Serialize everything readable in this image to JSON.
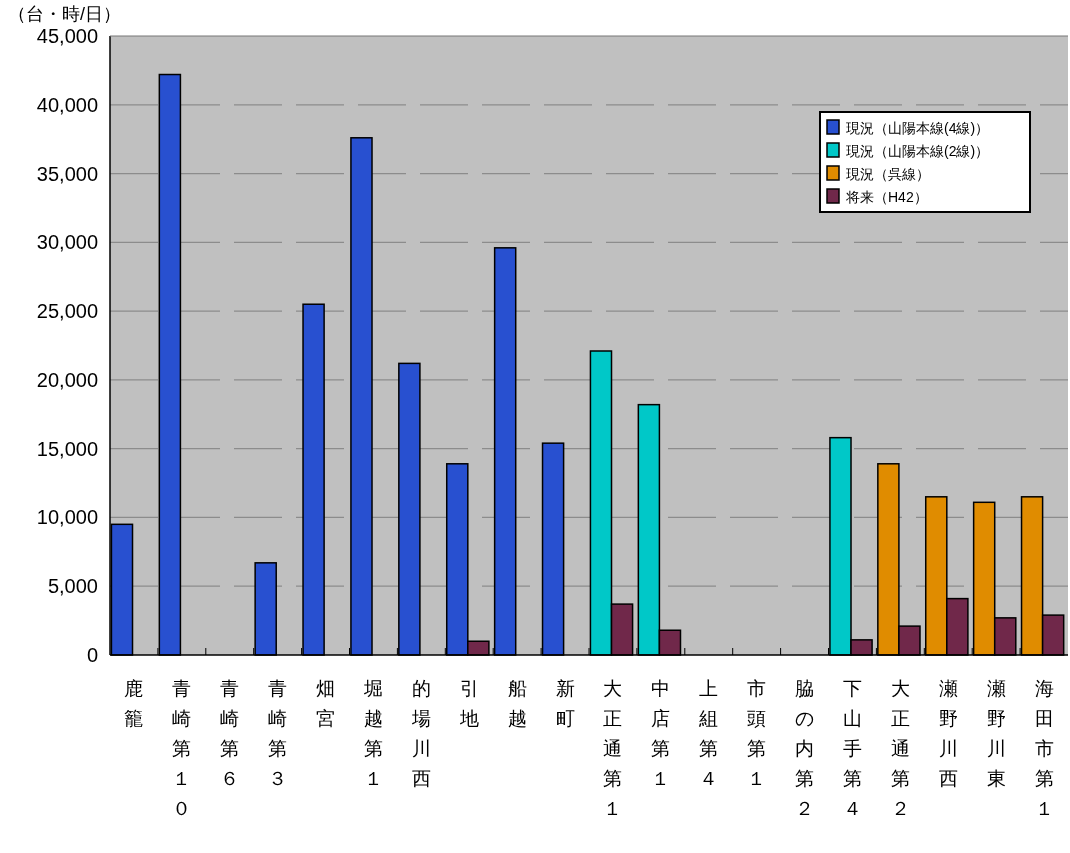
{
  "chart_data": {
    "type": "bar",
    "ylabel": "（台・時/日）",
    "categories": [
      "鹿籠",
      "青崎第１０",
      "青崎第６",
      "青崎第３",
      "畑宮",
      "堀越第１",
      "的場川西",
      "引地",
      "船越",
      "新町",
      "大正通第１",
      "中店第１",
      "上組第４",
      "市頭第１",
      "脇の内第２",
      "下山手第４",
      "大正通第２",
      "瀬野川西",
      "瀬野川東",
      "海田市第１"
    ],
    "series": [
      {
        "name": "現況（山陽本線(4線)）",
        "color": "#2850d0",
        "values": [
          9500,
          42200,
          null,
          6700,
          25500,
          37600,
          21200,
          13900,
          29600,
          15400,
          null,
          null,
          null,
          null,
          null,
          null,
          null,
          null,
          null,
          null
        ]
      },
      {
        "name": "現況（山陽本線(2線)）",
        "color": "#00c8c8",
        "values": [
          null,
          null,
          null,
          null,
          null,
          null,
          null,
          null,
          null,
          null,
          22100,
          18200,
          null,
          null,
          null,
          15800,
          null,
          null,
          null,
          null
        ]
      },
      {
        "name": "現況（呉線）",
        "color": "#e08c00",
        "values": [
          null,
          null,
          null,
          null,
          null,
          null,
          null,
          null,
          null,
          null,
          null,
          null,
          null,
          null,
          null,
          null,
          13900,
          11500,
          11100,
          11500
        ]
      },
      {
        "name": "将来（H42）",
        "color": "#70284a",
        "values": [
          null,
          null,
          null,
          null,
          null,
          null,
          null,
          1000,
          null,
          null,
          3700,
          1800,
          null,
          null,
          null,
          1100,
          2100,
          4100,
          2700,
          2900
        ]
      }
    ],
    "ylim": [
      0,
      45000
    ],
    "yticks": [
      {
        "value": 0,
        "label": "0"
      },
      {
        "value": 5000,
        "label": "5,000"
      },
      {
        "value": 10000,
        "label": "10,000"
      },
      {
        "value": 15000,
        "label": "15,000"
      },
      {
        "value": 20000,
        "label": "20,000"
      },
      {
        "value": 25000,
        "label": "25,000"
      },
      {
        "value": 30000,
        "label": "30,000"
      },
      {
        "value": 35000,
        "label": "35,000"
      },
      {
        "value": 40000,
        "label": "40,000"
      },
      {
        "value": 45000,
        "label": "45,000"
      }
    ],
    "grid": "y",
    "legend": "top right"
  }
}
